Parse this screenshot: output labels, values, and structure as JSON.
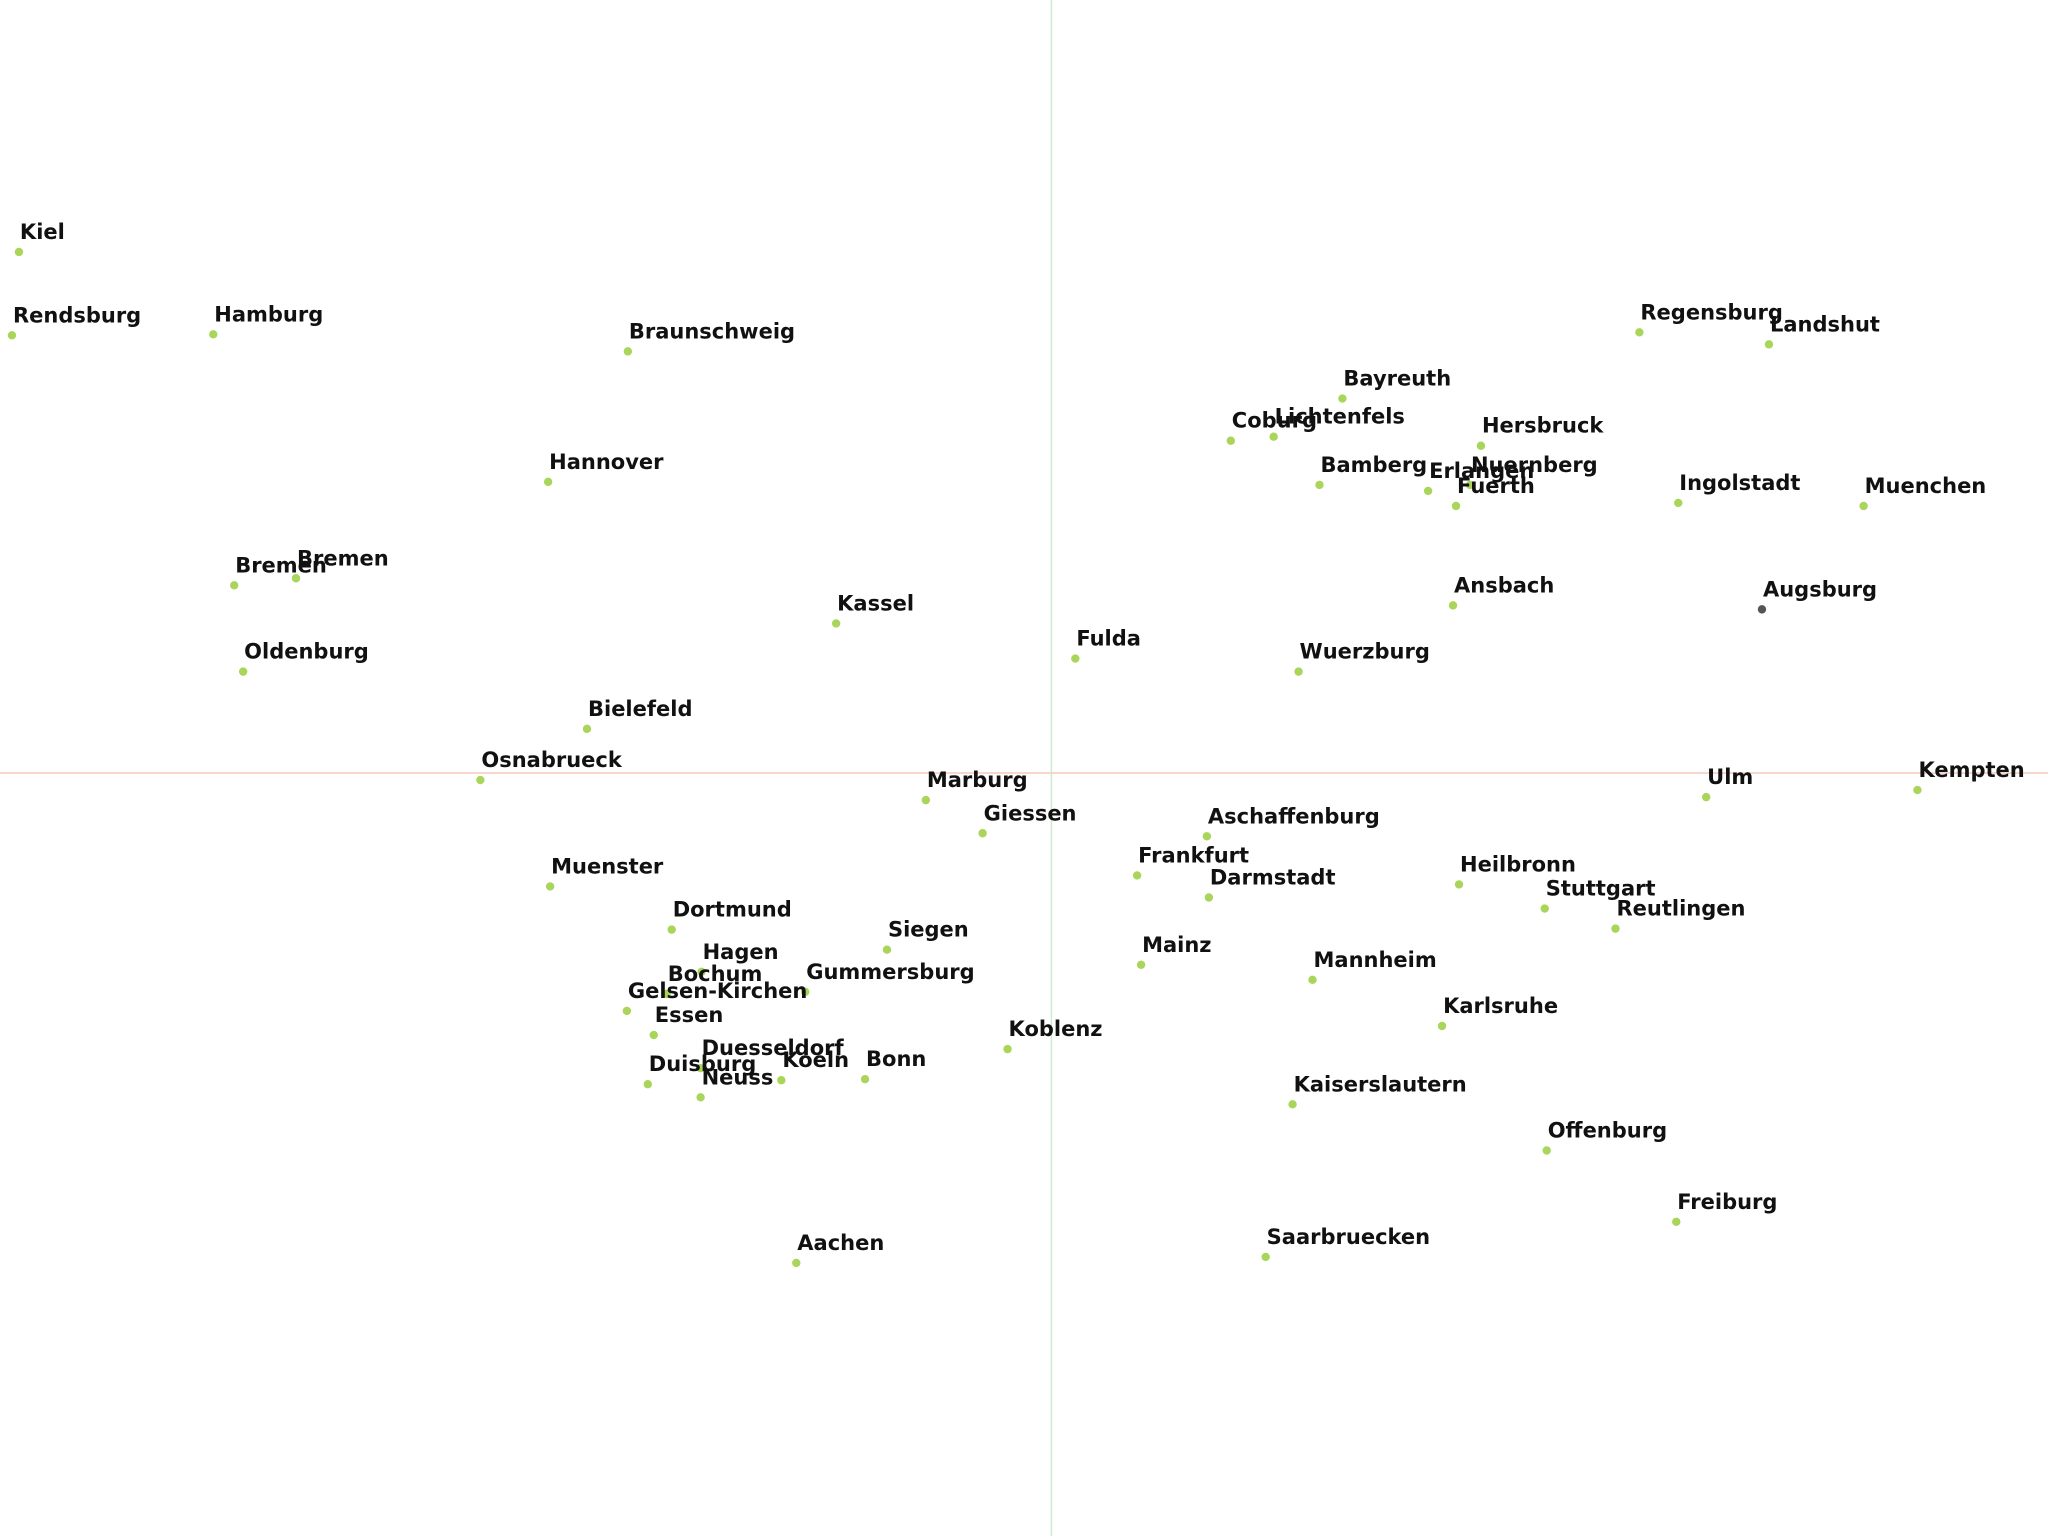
{
  "chart_data": {
    "type": "scatter",
    "title": "",
    "xlabel": "",
    "ylabel": "",
    "grid": false,
    "legend": "none",
    "xlim": [
      -1055,
      1000
    ],
    "ylim": [
      -760,
      770
    ],
    "axis_lines": {
      "vertical_color": "#cdeccd",
      "horizontal_color": "#f6c9c0"
    },
    "point_color": "#a9d65a",
    "selected_point_color": "#555555",
    "points": [
      {
        "label": "Kiel",
        "x": -1036,
        "y": 519
      },
      {
        "label": "Rendsburg",
        "x": -1043,
        "y": 436
      },
      {
        "label": "Hamburg",
        "x": -841,
        "y": 437
      },
      {
        "label": "Braunschweig",
        "x": -425,
        "y": 420
      },
      {
        "label": "Hannover",
        "x": -505,
        "y": 290
      },
      {
        "label": "Bremen",
        "x": -820,
        "y": 187
      },
      {
        "label": "Bremen",
        "x": -758,
        "y": 194
      },
      {
        "label": "Oldenburg",
        "x": -811,
        "y": 101
      },
      {
        "label": "Kassel",
        "x": -216,
        "y": 149
      },
      {
        "label": "Bielefeld",
        "x": -466,
        "y": 44
      },
      {
        "label": "Osnabrueck",
        "x": -573,
        "y": -7
      },
      {
        "label": "Muenster",
        "x": -503,
        "y": -113
      },
      {
        "label": "Dortmund",
        "x": -381,
        "y": -156
      },
      {
        "label": "Hagen",
        "x": -351,
        "y": -198
      },
      {
        "label": "Bochum",
        "x": -386,
        "y": -220
      },
      {
        "label": "Gelsen-Kirchen",
        "x": -426,
        "y": -237
      },
      {
        "label": "Essen",
        "x": -399,
        "y": -261
      },
      {
        "label": "Duesseldorf",
        "x": -352,
        "y": -294
      },
      {
        "label": "Duisburg",
        "x": -405,
        "y": -310
      },
      {
        "label": "Neuss",
        "x": -352,
        "y": -323
      },
      {
        "label": "Koeln",
        "x": -271,
        "y": -306
      },
      {
        "label": "Bonn",
        "x": -187,
        "y": -305
      },
      {
        "label": "Gummersburg",
        "x": -247,
        "y": -218
      },
      {
        "label": "Siegen",
        "x": -165,
        "y": -176
      },
      {
        "label": "Marburg",
        "x": -126,
        "y": -27
      },
      {
        "label": "Giessen",
        "x": -69,
        "y": -60
      },
      {
        "label": "Koblenz",
        "x": -44,
        "y": -275
      },
      {
        "label": "Aachen",
        "x": -256,
        "y": -488
      },
      {
        "label": "Fulda",
        "x": 24,
        "y": 114
      },
      {
        "label": "Frankfurt",
        "x": 86,
        "y": -102
      },
      {
        "label": "Aschaffenburg",
        "x": 156,
        "y": -63
      },
      {
        "label": "Darmstadt",
        "x": 158,
        "y": -124
      },
      {
        "label": "Mainz",
        "x": 90,
        "y": -191
      },
      {
        "label": "Mannheim",
        "x": 262,
        "y": -206
      },
      {
        "label": "Kaiserslautern",
        "x": 242,
        "y": -330
      },
      {
        "label": "Saarbruecken",
        "x": 215,
        "y": -482
      },
      {
        "label": "Karlsruhe",
        "x": 392,
        "y": -252
      },
      {
        "label": "Heilbronn",
        "x": 409,
        "y": -111
      },
      {
        "label": "Stuttgart",
        "x": 495,
        "y": -135
      },
      {
        "label": "Reutlingen",
        "x": 566,
        "y": -155
      },
      {
        "label": "Offenburg",
        "x": 497,
        "y": -376
      },
      {
        "label": "Freiburg",
        "x": 627,
        "y": -447
      },
      {
        "label": "Ulm",
        "x": 657,
        "y": -24
      },
      {
        "label": "Kempten",
        "x": 869,
        "y": -17
      },
      {
        "label": "Wuerzburg",
        "x": 248,
        "y": 101
      },
      {
        "label": "Ansbach",
        "x": 403,
        "y": 167
      },
      {
        "label": "Augsburg",
        "x": 713,
        "y": 163,
        "selected": true
      },
      {
        "label": "Muenchen",
        "x": 815,
        "y": 266
      },
      {
        "label": "Ingolstadt",
        "x": 629,
        "y": 269
      },
      {
        "label": "Fuerth",
        "x": 406,
        "y": 266
      },
      {
        "label": "Nuernberg",
        "x": 420,
        "y": 287
      },
      {
        "label": "Erlangen",
        "x": 378,
        "y": 281
      },
      {
        "label": "Bamberg",
        "x": 269,
        "y": 287
      },
      {
        "label": "Hersbruck",
        "x": 431,
        "y": 326
      },
      {
        "label": "Coburg",
        "x": 180,
        "y": 331
      },
      {
        "label": "Lichtenfels",
        "x": 223,
        "y": 335
      },
      {
        "label": "Bayreuth",
        "x": 292,
        "y": 373
      },
      {
        "label": "Regensburg",
        "x": 590,
        "y": 439
      },
      {
        "label": "Landshut",
        "x": 720,
        "y": 427
      }
    ]
  }
}
